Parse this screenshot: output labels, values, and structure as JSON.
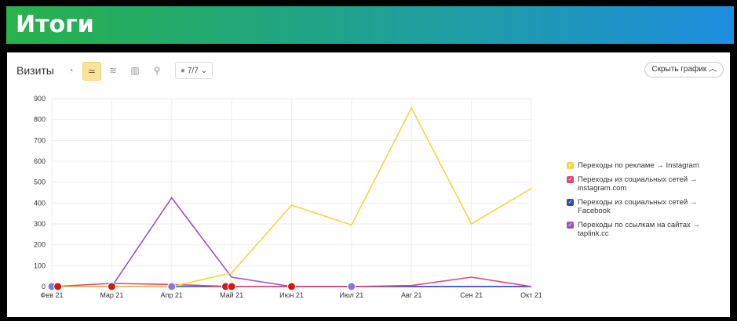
{
  "header": {
    "title": "Итоги"
  },
  "toolbar": {
    "title": "Визиты",
    "icons": [
      "pie-icon",
      "line-chart-icon",
      "area-icon",
      "bar-icon",
      "map-pin-icon"
    ],
    "notes_label": "7/7",
    "hide_label": "Скрыть график"
  },
  "chart_data": {
    "type": "line",
    "categories": [
      "Фев 21",
      "Мар 21",
      "Апр 21",
      "Май 21",
      "Июн 21",
      "Июл 21",
      "Авг 21",
      "Сен 21",
      "Окт 21"
    ],
    "yticks": [
      0,
      100,
      200,
      300,
      400,
      500,
      600,
      700,
      800,
      900
    ],
    "ylim": [
      0,
      900
    ],
    "grid": true,
    "legend_position": "right",
    "series": [
      {
        "name": "Переходы по рекламе → Instagram",
        "color": "#f5d442",
        "values": [
          0,
          0,
          0,
          65,
          390,
          295,
          855,
          300,
          470
        ]
      },
      {
        "name": "Переходы из социальных сетей → instagram.com",
        "color": "#e0457b",
        "values": [
          0,
          15,
          10,
          0,
          0,
          0,
          5,
          45,
          0
        ]
      },
      {
        "name": "Переходы из социальных сетей → Facebook",
        "color": "#2a4fb0",
        "values": [
          0,
          0,
          0,
          0,
          0,
          0,
          0,
          0,
          0
        ]
      },
      {
        "name": "Переходы по ссылкам на сайтах → taplink.cc",
        "color": "#a050c0",
        "values": [
          0,
          0,
          425,
          45,
          0,
          0,
          0,
          0,
          0
        ]
      }
    ]
  }
}
